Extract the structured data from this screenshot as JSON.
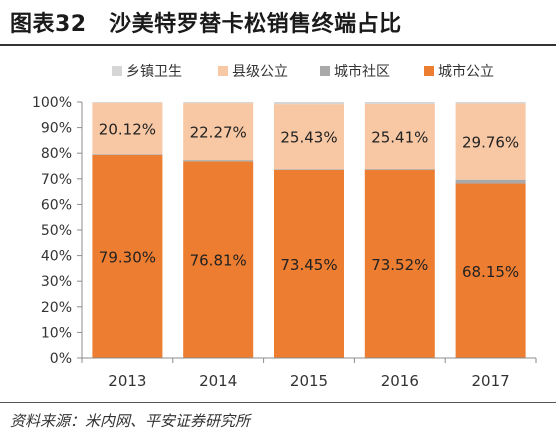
{
  "title": "图表32　沙美特罗替卡松销售终端占比",
  "source": "资料来源：米内网、平安证券研究所",
  "colors": {
    "乡镇卫生": "#d6d6d6",
    "县级公立": "#f8c8a4",
    "城市社区": "#a9a9a9",
    "城市公立": "#ed7d31"
  },
  "chart_data": {
    "type": "bar",
    "stacked": true,
    "percent": true,
    "categories": [
      "2013",
      "2014",
      "2015",
      "2016",
      "2017"
    ],
    "series": [
      {
        "name": "城市公立",
        "values": [
          79.3,
          76.81,
          73.45,
          73.52,
          68.15
        ],
        "labels": [
          "79.30%",
          "76.81%",
          "73.45%",
          "73.52%",
          "68.15%"
        ]
      },
      {
        "name": "城市社区",
        "values": [
          0.3,
          0.5,
          0.3,
          0.3,
          1.5
        ]
      },
      {
        "name": "县级公立",
        "values": [
          20.12,
          22.27,
          25.43,
          25.41,
          29.76
        ],
        "labels": [
          "20.12%",
          "22.27%",
          "25.43%",
          "25.41%",
          "29.76%"
        ]
      },
      {
        "name": "乡镇卫生",
        "values": [
          0.28,
          0.42,
          0.82,
          0.77,
          0.59
        ]
      }
    ],
    "legend_order": [
      "乡镇卫生",
      "县级公立",
      "城市社区",
      "城市公立"
    ],
    "legend_position": "top",
    "ylim": [
      0,
      100
    ],
    "yticks": [
      "0%",
      "10%",
      "20%",
      "30%",
      "40%",
      "50%",
      "60%",
      "70%",
      "80%",
      "90%",
      "100%"
    ],
    "grid": false
  }
}
